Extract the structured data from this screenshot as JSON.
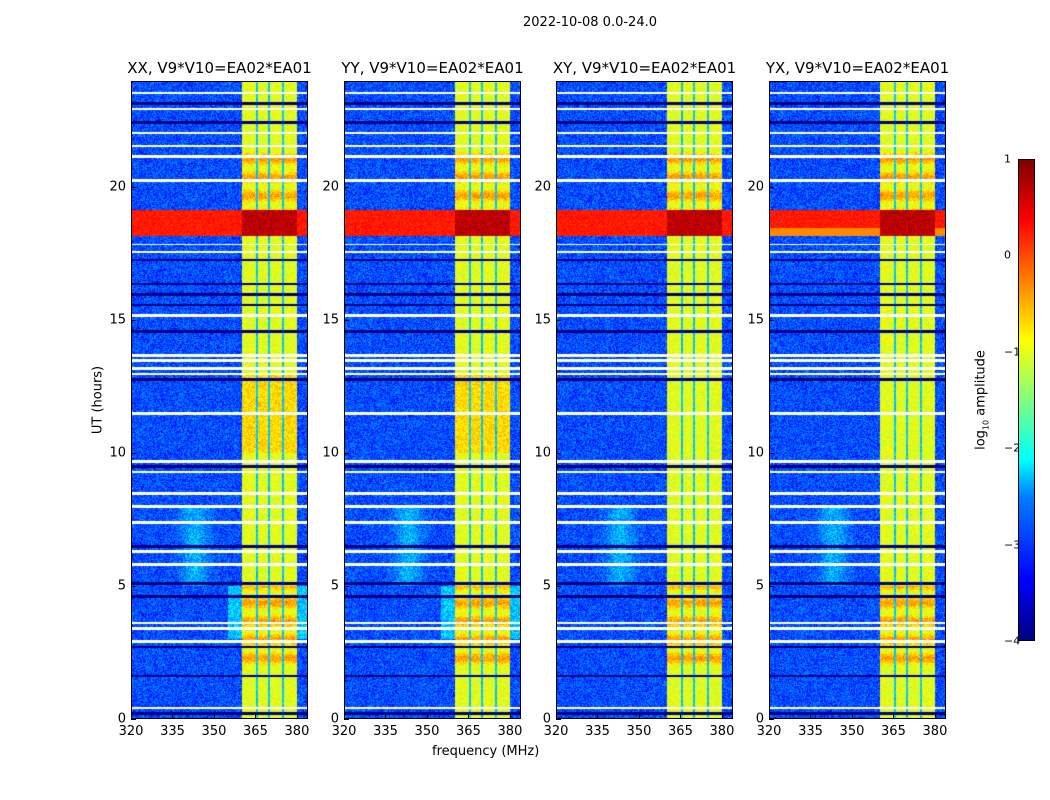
{
  "figure_title": "2022-10-08 0.0-24.0",
  "chart_data": {
    "type": "heatmap",
    "panels": [
      {
        "title": "XX, V9*V10=EA02*EA01"
      },
      {
        "title": "YY, V9*V10=EA02*EA01"
      },
      {
        "title": "XY, V9*V10=EA02*EA01"
      },
      {
        "title": "YX, V9*V10=EA02*EA01"
      }
    ],
    "xlabel": "frequency (MHz)",
    "ylabel": "UT (hours)",
    "xlim": [
      320,
      384
    ],
    "ylim": [
      0,
      24
    ],
    "xticks": [
      "320",
      "335",
      "350",
      "365",
      "380"
    ],
    "xtick_values": [
      320,
      335,
      350,
      365,
      380
    ],
    "yticks": [
      "0",
      "5",
      "10",
      "15",
      "20"
    ],
    "ytick_values": [
      0,
      5,
      10,
      15,
      20
    ],
    "colorbar": {
      "label": "log₁₀ amplitude",
      "label_main": "log",
      "label_sub": "10",
      "label_rest": " amplitude",
      "range": [
        -4,
        1
      ],
      "ticks": [
        "1",
        "0",
        "−1",
        "−2",
        "−3",
        "−4"
      ],
      "tick_values": [
        1,
        0,
        -1,
        -2,
        -3,
        -4
      ],
      "colormap": "jet"
    },
    "features": {
      "rfi_band_mhz": [
        360,
        380
      ],
      "band_gaps_mhz": [
        365.5,
        370,
        375
      ],
      "strong_rfi_hours": [
        18.2,
        19.2
      ],
      "flagged_white_hours": [
        0.4,
        2.9,
        3.4,
        3.6,
        5.8,
        6.3,
        7.4,
        8.0,
        8.5,
        9.3,
        9.7,
        11.5,
        13.0,
        13.2,
        13.5,
        13.7,
        15.2,
        17.6,
        17.9,
        20.3,
        21.2,
        21.6,
        22.1,
        23.0,
        23.6
      ],
      "flagged_black_hours": [
        0.2,
        1.6,
        2.7,
        4.6,
        5.1,
        6.5,
        9.5,
        12.8,
        14.6,
        15.6,
        16.0,
        16.4,
        17.3,
        22.5,
        23.2
      ]
    }
  }
}
